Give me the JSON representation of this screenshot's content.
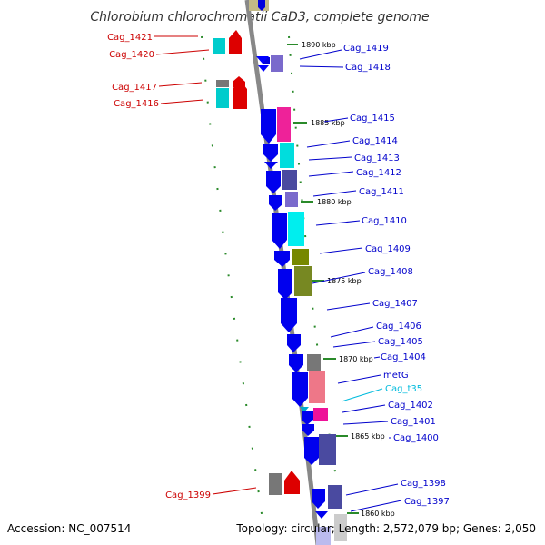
{
  "title": "Chlorobium chlorochromatii CaD3, complete genome",
  "accession": "Accession: NC_007514",
  "topology": "Topology: circular; Length: 2,572,079 bp; Genes: 2,050",
  "colors": {
    "left_label": "#cc0000",
    "right_label": "#0000cc",
    "rna_label": "#00bbdd"
  },
  "ticks": [
    {
      "label": "1890 kbp"
    },
    {
      "label": "1885 kbp"
    },
    {
      "label": "1880 kbp"
    },
    {
      "label": "1875 kbp"
    },
    {
      "label": "1870 kbp"
    },
    {
      "label": "1865 kbp"
    },
    {
      "label": "1860 kbp"
    }
  ],
  "genes_left": [
    {
      "label": "Cag_1421"
    },
    {
      "label": "Cag_1420"
    },
    {
      "label": "Cag_1417"
    },
    {
      "label": "Cag_1416"
    },
    {
      "label": "Cag_1399"
    }
  ],
  "genes_right": [
    {
      "label": "Cag_1419"
    },
    {
      "label": "Cag_1418"
    },
    {
      "label": "Cag_1415"
    },
    {
      "label": "Cag_1414"
    },
    {
      "label": "Cag_1413"
    },
    {
      "label": "Cag_1412"
    },
    {
      "label": "Cag_1411"
    },
    {
      "label": "Cag_1410"
    },
    {
      "label": "Cag_1409"
    },
    {
      "label": "Cag_1408"
    },
    {
      "label": "Cag_1407"
    },
    {
      "label": "Cag_1406"
    },
    {
      "label": "Cag_1405"
    },
    {
      "label": "Cag_1404"
    },
    {
      "label": "metG"
    },
    {
      "label": "Cag_t35"
    },
    {
      "label": "Cag_1402"
    },
    {
      "label": "Cag_1401"
    },
    {
      "label": "Cag_1400"
    },
    {
      "label": "Cag_1398"
    },
    {
      "label": "Cag_1397"
    }
  ]
}
